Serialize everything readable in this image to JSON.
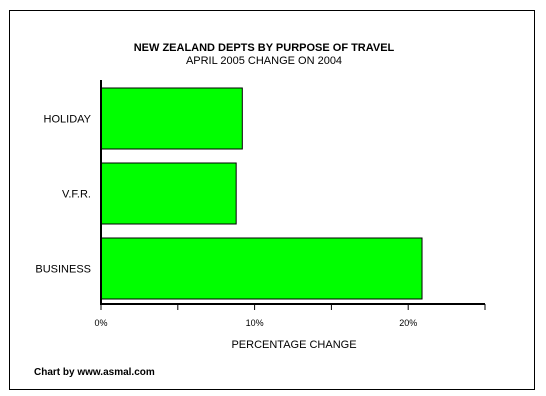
{
  "chart_data": {
    "type": "bar",
    "orientation": "horizontal",
    "title": "NEW ZEALAND DEPTS BY PURPOSE OF TRAVEL",
    "subtitle": "APRIL 2005 CHANGE ON 2004",
    "categories": [
      "HOLIDAY",
      "V.F.R.",
      "BUSINESS"
    ],
    "values": [
      9.2,
      8.8,
      20.9
    ],
    "xlabel": "PERCENTAGE CHANGE",
    "ylabel": "",
    "xlim": [
      0,
      25
    ],
    "xticks": [
      0,
      5,
      10,
      15,
      20,
      25
    ],
    "xtick_labels": [
      "0%",
      "",
      "10%",
      "",
      "20%",
      ""
    ],
    "bar_color": "#00ff00",
    "grid": false,
    "legend": "none"
  },
  "credit": "Chart by www.asmal.com"
}
